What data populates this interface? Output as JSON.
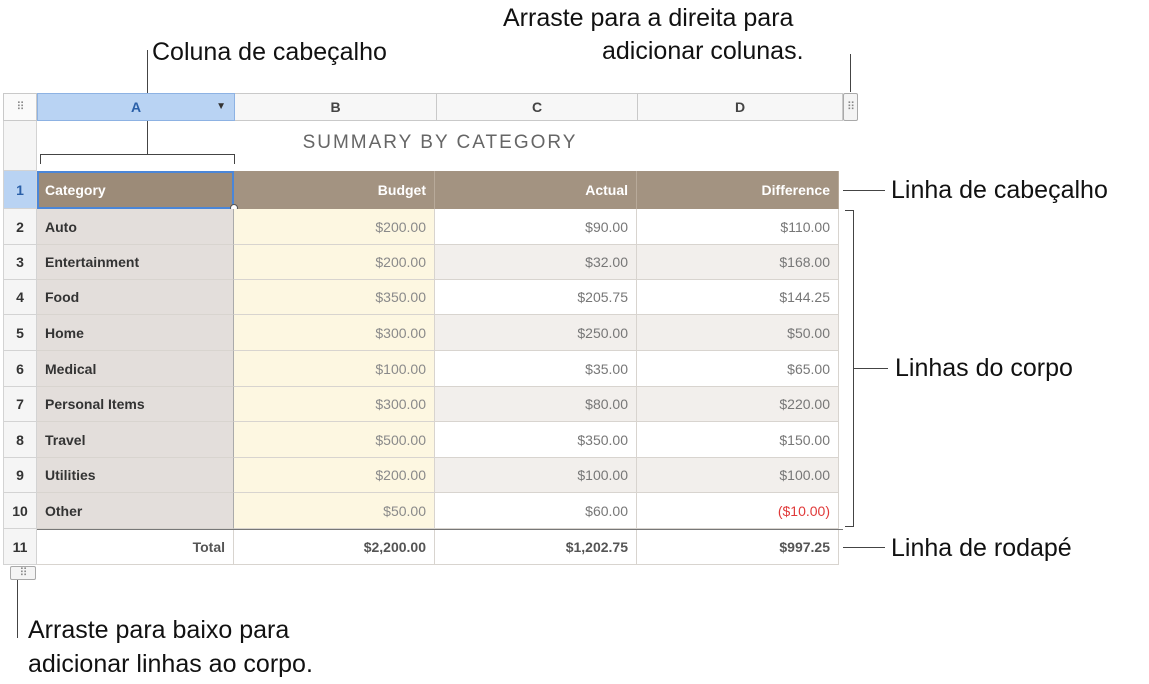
{
  "callouts": {
    "header_column": "Coluna de cabeçalho",
    "drag_columns_line1": "Arraste para a direita para",
    "drag_columns_line2": "adicionar colunas.",
    "header_row": "Linha de cabeçalho",
    "body_rows": "Linhas do corpo",
    "footer_row": "Linha de rodapé",
    "drag_rows_line1": "Arraste para baixo para",
    "drag_rows_line2": "adicionar linhas ao corpo."
  },
  "column_headers": [
    "A",
    "B",
    "C",
    "D"
  ],
  "table_title": "SUMMARY BY CATEGORY",
  "header_row": {
    "row_num": "1",
    "cells": [
      "Category",
      "Budget",
      "Actual",
      "Difference"
    ]
  },
  "body_rows": [
    {
      "row_num": "2",
      "cells": [
        "Auto",
        "$200.00",
        "$90.00",
        "$110.00"
      ]
    },
    {
      "row_num": "3",
      "cells": [
        "Entertainment",
        "$200.00",
        "$32.00",
        "$168.00"
      ]
    },
    {
      "row_num": "4",
      "cells": [
        "Food",
        "$350.00",
        "$205.75",
        "$144.25"
      ]
    },
    {
      "row_num": "5",
      "cells": [
        "Home",
        "$300.00",
        "$250.00",
        "$50.00"
      ]
    },
    {
      "row_num": "6",
      "cells": [
        "Medical",
        "$100.00",
        "$35.00",
        "$65.00"
      ]
    },
    {
      "row_num": "7",
      "cells": [
        "Personal Items",
        "$300.00",
        "$80.00",
        "$220.00"
      ]
    },
    {
      "row_num": "8",
      "cells": [
        "Travel",
        "$500.00",
        "$350.00",
        "$150.00"
      ]
    },
    {
      "row_num": "9",
      "cells": [
        "Utilities",
        "$200.00",
        "$100.00",
        "$100.00"
      ]
    },
    {
      "row_num": "10",
      "cells": [
        "Other",
        "$50.00",
        "$60.00",
        "($10.00)"
      ]
    }
  ],
  "footer_row": {
    "row_num": "11",
    "cells": [
      "Total",
      "$2,200.00",
      "$1,202.75",
      "$997.25"
    ]
  },
  "colors": {
    "header_bg": "#a39381",
    "header_column_bg": "#e3dedb",
    "budget_column_bg": "#fdf7e1",
    "selection_blue": "#b9d3f3",
    "negative": "#e03a3a"
  },
  "icons": {
    "column_menu": "chevron-down-icon",
    "drag_handle": "grip-dots-icon"
  }
}
